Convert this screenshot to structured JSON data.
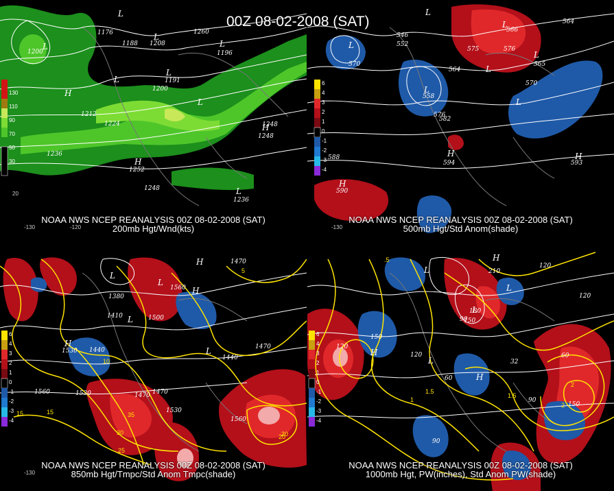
{
  "header": {
    "timestamp": "00Z 08-02-2008 (SAT)"
  },
  "panels": [
    {
      "caption1": "NOAA NWS NCEP REANALYSIS 00Z 08-02-2008 (SAT)",
      "caption2": "200mb Hgt/Wnd(kts)",
      "scale": [
        "130",
        "110",
        "90",
        "70",
        "50",
        "30"
      ],
      "contour_labels": [
        "1176",
        "1188",
        "1200",
        "1200",
        "1208",
        "1196",
        "1191",
        "1200",
        "1196",
        "1212",
        "1224",
        "1236",
        "1248",
        "1248",
        "1248",
        "1252",
        "1236",
        "1260"
      ],
      "lon_labels": [
        "-130",
        "-120",
        "20"
      ]
    },
    {
      "caption1": "NOAA NWS NCEP REANALYSIS 00Z 08-02-2008 (SAT)",
      "caption2": "500mb Hgt/Std Anom(shade)",
      "scale": [
        "6",
        "4",
        "3",
        "2",
        "1",
        "0",
        "-1",
        "-2",
        "-3",
        "-4",
        "-5"
      ],
      "contour_labels": [
        "546",
        "552",
        "564",
        "570",
        "576",
        "582",
        "588",
        "594",
        "590",
        "564",
        "565",
        "566",
        "575",
        "576",
        "570",
        "593",
        "558"
      ],
      "lon_labels": [
        "-130"
      ]
    },
    {
      "caption1": "NOAA NWS NCEP REANALYSIS 00Z 08-02-2008 (SAT)",
      "caption2": "850mb Hgt/Tmpc/Std Anom Tmpc(shade)",
      "scale": [
        "6",
        "4",
        "3",
        "2",
        "1",
        "0",
        "-1",
        "-2",
        "-3",
        "-4",
        "-5"
      ],
      "contour_labels": [
        "1380",
        "1410",
        "1440",
        "1470",
        "1500",
        "1530",
        "1560",
        "1440",
        "1470",
        "1530",
        "1560",
        "1470",
        "1530",
        "1560",
        "1470"
      ],
      "temp_labels": [
        "5",
        "10",
        "15",
        "20",
        "25",
        "30",
        "35",
        "20",
        "15"
      ],
      "lon_labels": [
        "-130"
      ]
    },
    {
      "caption1": "NOAA NWS NCEP REANALYSIS 00Z 08-02-2008 (SAT)",
      "caption2": "1000mb Hgt, PW(inches), Std Anom PW(shade)",
      "scale": [
        "6",
        "4",
        "3",
        "2",
        "1",
        "0",
        "-1",
        "-2",
        "-3",
        "-4",
        "-5"
      ],
      "contour_labels": [
        "120",
        "150",
        "120",
        "60",
        "90",
        "120",
        "150",
        "180",
        "210",
        "90",
        "120",
        "60",
        "32",
        "90",
        "150"
      ],
      "pw_labels": [
        "1.5",
        "2",
        "1.5",
        "1",
        "2",
        ".5"
      ],
      "lon_labels": []
    }
  ]
}
